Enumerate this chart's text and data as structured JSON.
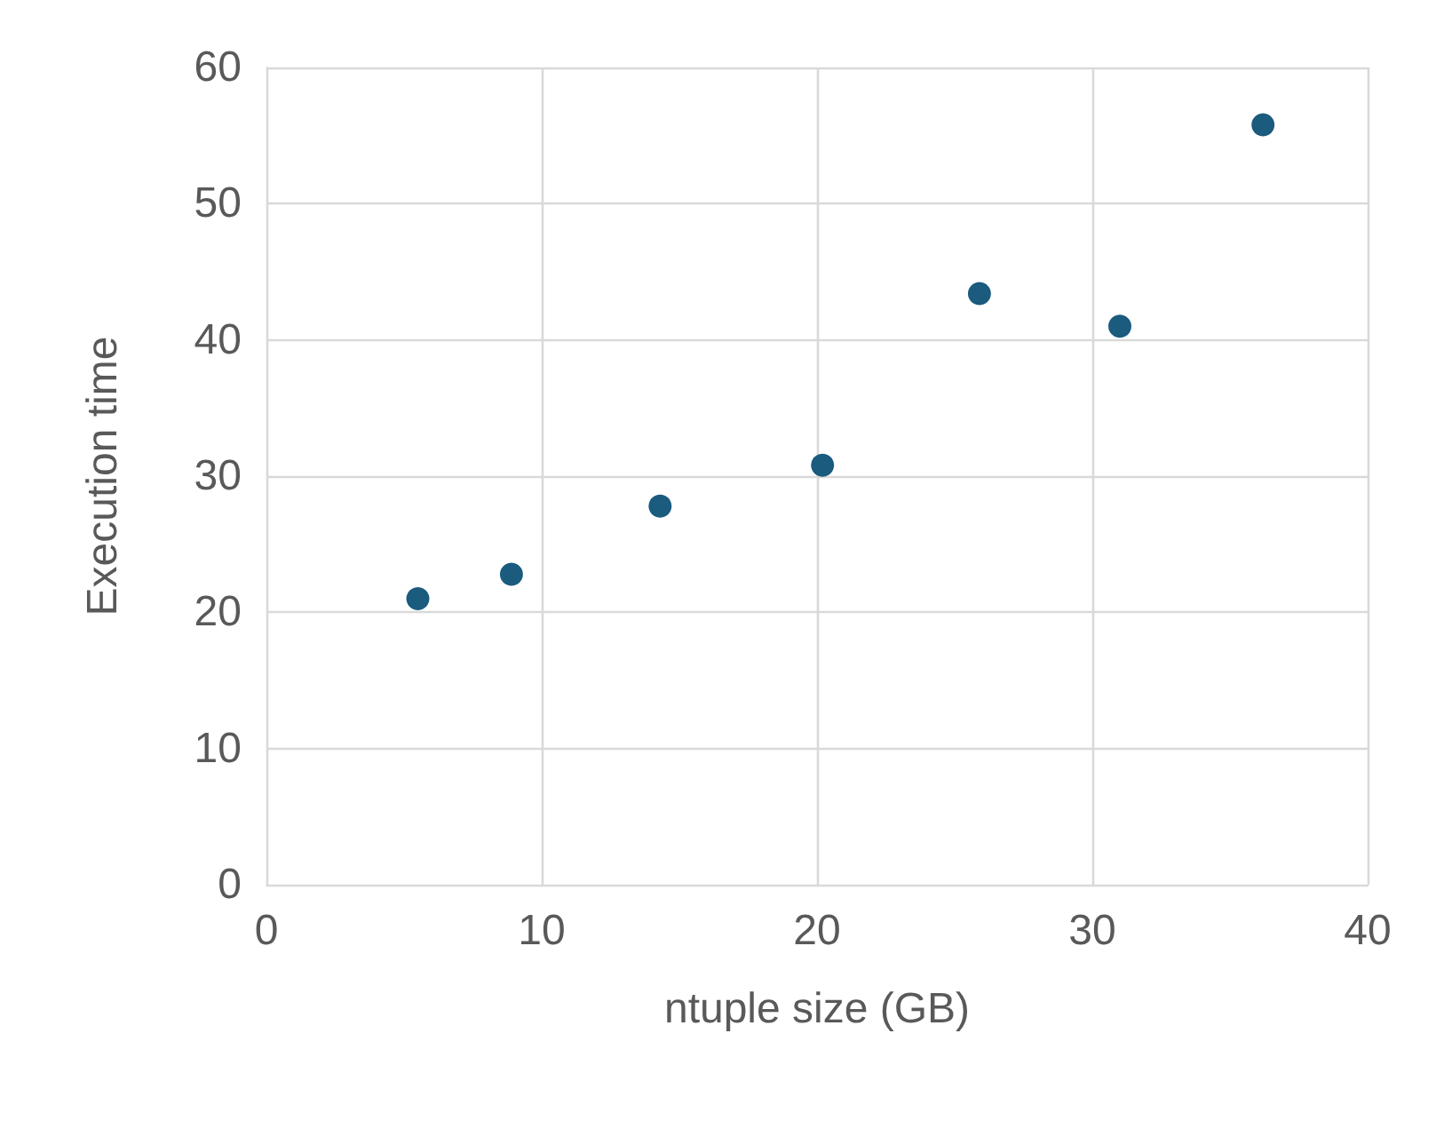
{
  "chart_data": {
    "type": "scatter",
    "xlabel": "ntuple size (GB)",
    "ylabel": "Execution time",
    "x": [
      5.5,
      8.9,
      14.3,
      20.2,
      25.9,
      31.0,
      36.2
    ],
    "series": [
      {
        "color": "#1a5b7e",
        "values": [
          21.0,
          22.8,
          27.8,
          30.8,
          43.4,
          41.0,
          55.8
        ]
      }
    ],
    "xlim": [
      0,
      40
    ],
    "xticks": [
      0,
      10,
      20,
      30,
      40
    ],
    "ylim": [
      0,
      60
    ],
    "yticks": [
      0,
      10,
      20,
      30,
      40,
      50,
      60
    ],
    "grid": true,
    "marker": "circle"
  }
}
